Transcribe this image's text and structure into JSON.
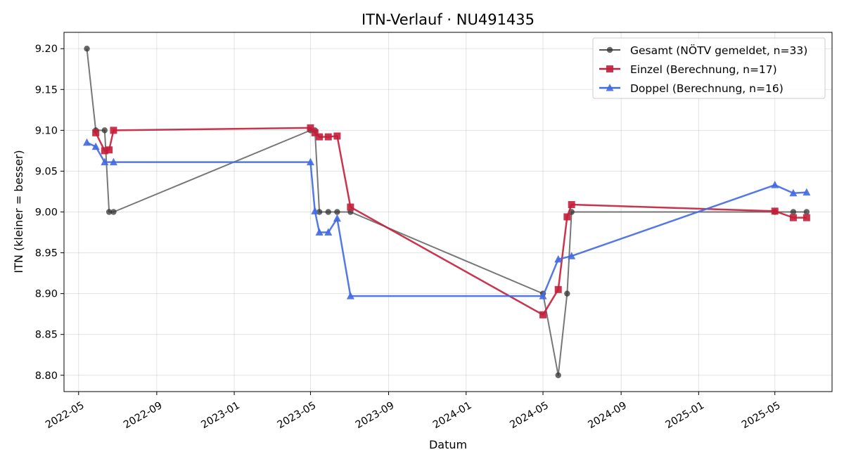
{
  "chart_data": {
    "type": "line",
    "title": "ITN-Verlauf · NU491435",
    "xlabel": "Datum",
    "ylabel": "ITN  (kleiner = besser)",
    "xlim": [
      "2022-04-08",
      "2025-07-30"
    ],
    "ylim": [
      8.78,
      9.22
    ],
    "x_ticks": [
      "2022-05-01",
      "2022-09-01",
      "2023-01-01",
      "2023-05-01",
      "2023-09-01",
      "2024-01-01",
      "2024-05-01",
      "2024-09-01",
      "2025-01-01",
      "2025-05-01"
    ],
    "x_tick_labels": [
      "2022-05",
      "2022-09",
      "2023-01",
      "2023-05",
      "2023-09",
      "2024-01",
      "2024-05",
      "2024-09",
      "2025-01",
      "2025-05"
    ],
    "y_ticks": [
      8.8,
      8.85,
      8.9,
      8.95,
      9.0,
      9.05,
      9.1,
      9.15,
      9.2
    ],
    "y_tick_labels": [
      "8.80",
      "8.85",
      "8.90",
      "8.95",
      "9.00",
      "9.05",
      "9.10",
      "9.15",
      "9.20"
    ],
    "grid": true,
    "legend_position": "top-right",
    "series": [
      {
        "name": "Gesamt (NÖTV gemeldet, n=33)",
        "color": "#555555",
        "marker": "circle",
        "points": [
          [
            "2022-05-14",
            9.2
          ],
          [
            "2022-05-28",
            9.1
          ],
          [
            "2022-06-11",
            9.1
          ],
          [
            "2022-06-18",
            9.0
          ],
          [
            "2022-06-25",
            9.0
          ],
          [
            "2023-05-01",
            9.1
          ],
          [
            "2023-05-08",
            9.1
          ],
          [
            "2023-05-15",
            9.0
          ],
          [
            "2023-05-29",
            9.0
          ],
          [
            "2023-06-12",
            9.0
          ],
          [
            "2023-07-03",
            9.0
          ],
          [
            "2024-05-01",
            8.9
          ],
          [
            "2024-05-25",
            8.8
          ],
          [
            "2024-06-08",
            8.9
          ],
          [
            "2024-06-15",
            9.0
          ],
          [
            "2025-05-01",
            9.0
          ],
          [
            "2025-05-30",
            9.0
          ],
          [
            "2025-06-20",
            9.0
          ]
        ]
      },
      {
        "name": "Einzel (Berechnung, n=17)",
        "color": "#c41e3a",
        "marker": "square",
        "points": [
          [
            "2022-05-28",
            9.097
          ],
          [
            "2022-06-11",
            9.075
          ],
          [
            "2022-06-18",
            9.076
          ],
          [
            "2022-06-25",
            9.1
          ],
          [
            "2023-05-01",
            9.103
          ],
          [
            "2023-05-08",
            9.097
          ],
          [
            "2023-05-15",
            9.092
          ],
          [
            "2023-05-29",
            9.092
          ],
          [
            "2023-06-12",
            9.093
          ],
          [
            "2023-07-03",
            9.006
          ],
          [
            "2024-05-01",
            8.874
          ],
          [
            "2024-05-25",
            8.905
          ],
          [
            "2024-06-08",
            8.994
          ],
          [
            "2024-06-15",
            9.009
          ],
          [
            "2025-05-01",
            9.001
          ],
          [
            "2025-05-30",
            8.993
          ],
          [
            "2025-06-20",
            8.993
          ]
        ]
      },
      {
        "name": "Doppel (Berechnung, n=16)",
        "color": "#4169e1",
        "marker": "triangle",
        "points": [
          [
            "2022-05-14",
            9.085
          ],
          [
            "2022-05-28",
            9.08
          ],
          [
            "2022-06-11",
            9.061
          ],
          [
            "2022-06-25",
            9.061
          ],
          [
            "2023-05-01",
            9.061
          ],
          [
            "2023-05-08",
            9.001
          ],
          [
            "2023-05-15",
            8.975
          ],
          [
            "2023-05-29",
            8.975
          ],
          [
            "2023-06-12",
            8.992
          ],
          [
            "2023-07-03",
            8.897
          ],
          [
            "2024-05-01",
            8.897
          ],
          [
            "2024-05-25",
            8.942
          ],
          [
            "2024-06-15",
            8.946
          ],
          [
            "2025-05-01",
            9.033
          ],
          [
            "2025-05-30",
            9.023
          ],
          [
            "2025-06-20",
            9.024
          ]
        ]
      }
    ]
  }
}
